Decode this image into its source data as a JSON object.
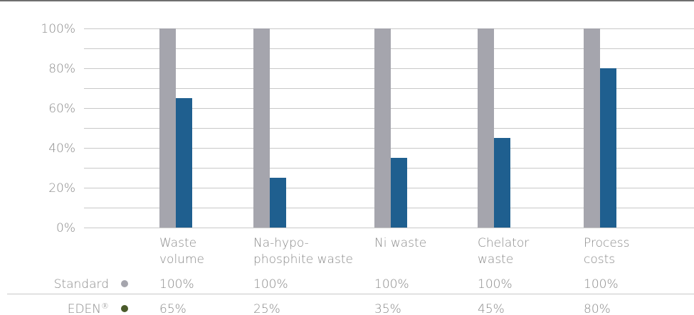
{
  "colors": {
    "standard": "#a5a5ad",
    "eden": "#1f5f8f",
    "eden_dot": "#4a5a2a",
    "grid": "#c8c8c8",
    "text": "#8a8a8a"
  },
  "chart_data": {
    "type": "bar",
    "categories": [
      [
        "Waste",
        "volume"
      ],
      [
        "Na-hypo-",
        "phosphite waste"
      ],
      [
        "Ni waste"
      ],
      [
        "Chelator",
        "waste"
      ],
      [
        "Process",
        "costs"
      ]
    ],
    "series": [
      {
        "name": "Standard",
        "values": [
          100,
          100,
          100,
          100,
          100
        ],
        "labels": [
          "100%",
          "100%",
          "100%",
          "100%",
          "100%"
        ]
      },
      {
        "name": "EDEN®",
        "values": [
          65,
          25,
          35,
          45,
          80
        ],
        "labels": [
          "65%",
          "25%",
          "35%",
          "45%",
          "80%"
        ]
      }
    ],
    "ylim": [
      0,
      100
    ],
    "yticks": [
      "0%",
      "20%",
      "40%",
      "60%",
      "80%",
      "100%"
    ],
    "ytick_values": [
      0,
      20,
      40,
      60,
      80,
      100
    ],
    "grid": true,
    "legend": "table-below"
  }
}
